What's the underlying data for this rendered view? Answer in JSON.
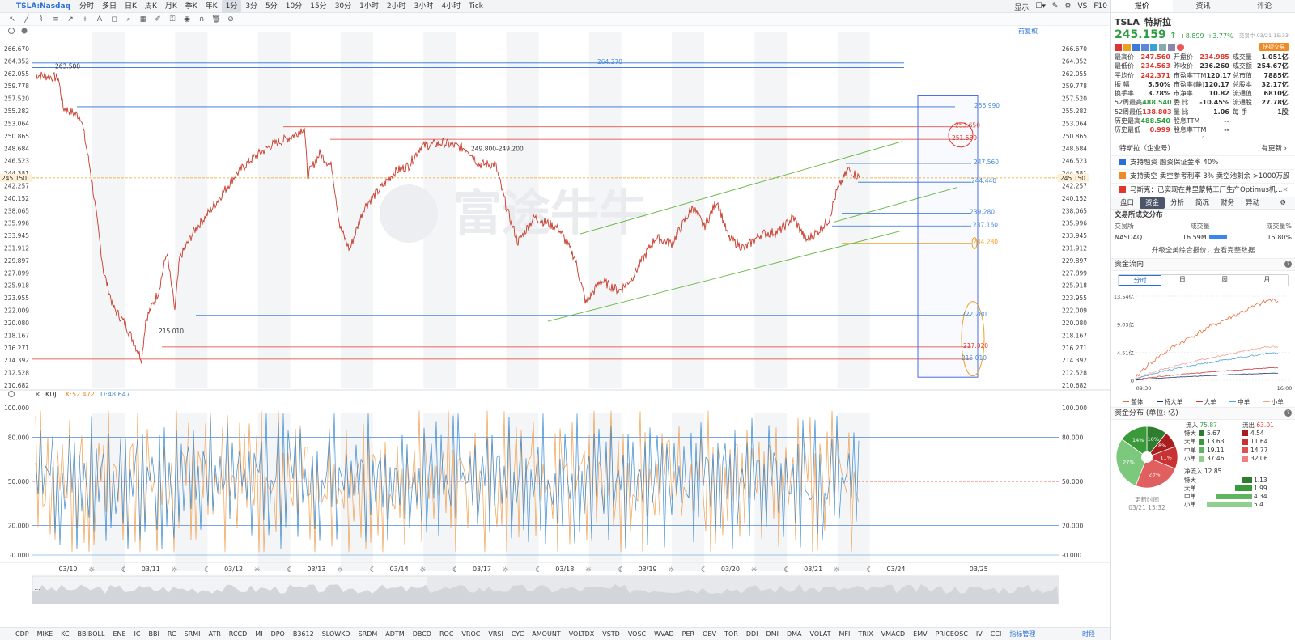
{
  "toolbar": {
    "ticker": "TSLA:Nasdaq",
    "timeframes": [
      "分时",
      "多日",
      "日K",
      "周K",
      "月K",
      "季K",
      "年K",
      "1分",
      "3分",
      "5分",
      "10分",
      "15分",
      "30分",
      "1小时",
      "2小时",
      "3小时",
      "4小时",
      "Tick"
    ],
    "active_timeframe": "1分",
    "right": {
      "display": "显示",
      "vs": "VS",
      "f10": "F10"
    },
    "adjust": "前复权"
  },
  "price_axis": {
    "labels": [
      "266.670",
      "264.352",
      "262.055",
      "259.778",
      "257.520",
      "255.282",
      "253.064",
      "250.865",
      "248.684",
      "246.523",
      "244.381",
      "242.257",
      "240.152",
      "238.065",
      "235.996",
      "233.945",
      "231.912",
      "229.897",
      "227.899",
      "225.918",
      "223.955",
      "222.009",
      "220.080",
      "218.167",
      "216.271",
      "214.392",
      "212.528",
      "210.682"
    ],
    "current": "245.150"
  },
  "chart_data": {
    "type": "candlestick",
    "y_range": [
      210.682,
      266.67
    ],
    "x_dates": [
      "03/10",
      "03/11",
      "03/12",
      "03/13",
      "03/14",
      "03/17",
      "03/18",
      "03/19",
      "03/20",
      "03/21",
      "03/24",
      "03/25"
    ],
    "current_price": 245.15,
    "annotations": [
      {
        "text": "263.500",
        "price": 263.5
      },
      {
        "text": "264.270",
        "price": 264.27
      },
      {
        "text": "249.800-249.200",
        "price": 249.8
      },
      {
        "text": "215.010",
        "price": 215.01
      },
      {
        "text": "256.990",
        "price": 256.99
      },
      {
        "text": "253.650",
        "price": 253.65
      },
      {
        "text": "251.580",
        "price": 251.58
      },
      {
        "text": "247.560",
        "price": 247.56
      },
      {
        "text": "244.440",
        "price": 244.44
      },
      {
        "text": "239.280",
        "price": 239.28
      },
      {
        "text": "237.160",
        "price": 237.16
      },
      {
        "text": "234.280",
        "price": 234.28
      },
      {
        "text": "222.280",
        "price": 222.28
      },
      {
        "text": "217.020",
        "price": 217.02
      },
      {
        "text": "215.010",
        "price": 215.01
      }
    ],
    "watermark": "富途牛牛"
  },
  "kdj": {
    "label": "KDJ",
    "k_label": "K:52.472",
    "d_label": "D:48.647",
    "axis": [
      "100.000",
      "80.000",
      "50.000",
      "20.000",
      "-0.000"
    ],
    "axis_values": [
      100,
      80,
      50,
      20,
      0
    ]
  },
  "indicators": [
    "CDP",
    "MIKE",
    "KC",
    "BBIBOLL",
    "ENE",
    "IC",
    "BBI",
    "RC",
    "SRMI",
    "ATR",
    "RCCD",
    "MI",
    "DPO",
    "B3612",
    "SLOWKD",
    "SRDM",
    "ADTM",
    "DBCD",
    "ROC",
    "VROC",
    "VRSI",
    "CYC",
    "AMOUNT",
    "VOLTDX",
    "VSTD",
    "VOSC",
    "WVAD",
    "PER",
    "OBV",
    "TOR",
    "DDI",
    "DMI",
    "DMA",
    "VOLAT",
    "MFI",
    "TRIX",
    "VMACD",
    "EMV",
    "PRICEOSC",
    "IV",
    "CCI"
  ],
  "indicator_manage": "指标管理",
  "timeshare": "时段",
  "right_panel": {
    "tabs": [
      "报价",
      "资讯",
      "评论"
    ],
    "symbol": "TSLA",
    "name": "特斯拉",
    "price": "245.159",
    "change": "+8.899",
    "change_pct": "+3.77%",
    "time": "交易中 03/21 15:33",
    "quick_trade": "快捷交易",
    "quote_rows": [
      [
        [
          "最高价",
          "247.560",
          "red"
        ],
        [
          "开盘价",
          "234.985",
          "red"
        ],
        [
          "成交量",
          "1.051亿",
          ""
        ]
      ],
      [
        [
          "最低价",
          "234.563",
          "red"
        ],
        [
          "昨收价",
          "236.260",
          ""
        ],
        [
          "成交额",
          "254.67亿",
          ""
        ]
      ],
      [
        [
          "平均价",
          "242.371",
          "red"
        ],
        [
          "市盈率TTM",
          "120.17",
          ""
        ],
        [
          "总市值",
          "7885亿",
          ""
        ]
      ],
      [
        [
          "振 幅",
          "5.50%",
          ""
        ],
        [
          "市盈率(静)",
          "120.17",
          ""
        ],
        [
          "总股本",
          "32.17亿",
          ""
        ]
      ],
      [
        [
          "换手率",
          "3.78%",
          ""
        ],
        [
          "市净率",
          "10.82",
          ""
        ],
        [
          "流通值",
          "6810亿",
          ""
        ]
      ],
      [
        [
          "52周最高",
          "488.540",
          "green"
        ],
        [
          "委 比",
          "-10.45%",
          ""
        ],
        [
          "流通股",
          "27.78亿",
          ""
        ]
      ],
      [
        [
          "52周最低",
          "138.803",
          "red"
        ],
        [
          "量 比",
          "1.06",
          ""
        ],
        [
          "每 手",
          "1股",
          ""
        ]
      ],
      [
        [
          "历史最高",
          "488.540",
          "green"
        ],
        [
          "股息TTM",
          "--",
          ""
        ],
        [
          "",
          "",
          ""
        ]
      ],
      [
        [
          "历史最低",
          "0.999",
          "red"
        ],
        [
          "股息率TTM",
          "--",
          ""
        ],
        [
          "",
          "",
          ""
        ]
      ]
    ],
    "company": "特斯拉（企业号）",
    "company_update": "有更新",
    "news": [
      "支持融资   融资保证金率 40%",
      "支持卖空   卖空参考利率 3%   卖空池剩余 >1000万股",
      "马斯克：已实现在弗里蒙特工厂生产Optimus机..."
    ],
    "subtabs": [
      "盘口",
      "资金",
      "分析",
      "简况",
      "财务",
      "异动"
    ],
    "active_subtab": "资金",
    "exchange_title": "交易所成交分布",
    "exchange_head": [
      "交易所",
      "成交量",
      "成交量%"
    ],
    "exchange_row": [
      "NASDAQ",
      "16.59M",
      "15.80%"
    ],
    "upgrade": "升级全美综合报价，查看完整数据",
    "flow_title": "资金流向",
    "flow_tabs": [
      "分时",
      "日",
      "周",
      "月"
    ],
    "flow_y": [
      "13.54亿",
      "9.03亿",
      "4.51亿",
      "0"
    ],
    "flow_x": [
      "09:30",
      "16:00"
    ],
    "flow_legend": [
      "整体",
      "特大单",
      "大单",
      "中单",
      "小单"
    ],
    "dist_title": "资金分布 (单位: 亿)",
    "inflow_label": "流入",
    "inflow": "75.87",
    "outflow_label": "流出",
    "outflow": "63.01",
    "dist_rows": [
      [
        "特大",
        "5.67",
        "4.54"
      ],
      [
        "大单",
        "13.63",
        "11.64"
      ],
      [
        "中单",
        "19.11",
        "14.77"
      ],
      [
        "小单",
        "37.46",
        "32.06"
      ]
    ],
    "pie_labels": [
      "10%",
      "8%",
      "11%",
      "23%",
      "27%",
      "14%"
    ],
    "pie_values": [
      10,
      8,
      11,
      23,
      27,
      14
    ],
    "net_label": "净流入",
    "net": "12.85",
    "net_rows": [
      [
        "特大",
        "1.13"
      ],
      [
        "大单",
        "1.99"
      ],
      [
        "中单",
        "4.34"
      ],
      [
        "小单",
        "5.4"
      ]
    ],
    "update_label": "更新时间",
    "update_time": "03/21 15:32"
  }
}
